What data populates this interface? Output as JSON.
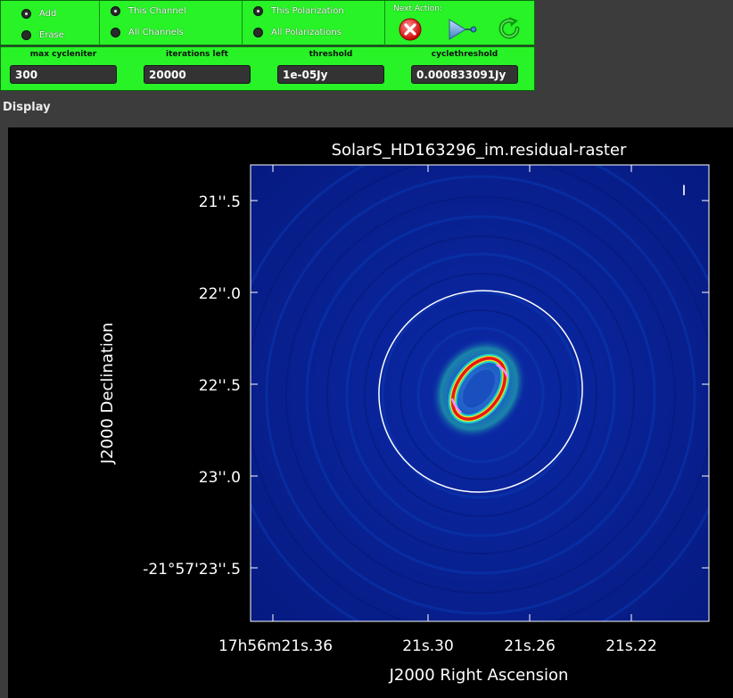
{
  "controls": {
    "add_label": "Add",
    "erase_label": "Erase",
    "this_channel_label": "This Channel",
    "all_channels_label": "All Channels",
    "this_pol_label": "This Polarization",
    "all_pols_label": "All Polarizations",
    "next_action_label": "Next Action:"
  },
  "fields": {
    "max_cycleniter": {
      "label": "max cycleniter",
      "value": "300"
    },
    "iterations_left": {
      "label": "iterations left",
      "value": "20000"
    },
    "threshold": {
      "label": "threshold",
      "value": "1e-05Jy"
    },
    "cyclethreshold": {
      "label": "cyclethreshold",
      "value": "0.000833091Jy"
    }
  },
  "display": {
    "section_label": "Display",
    "plot_title": "SolarS_HD163296_im.residual-raster",
    "ylabel": "J2000 Declination",
    "xlabel": "J2000 Right Ascension",
    "stokes_label": "I",
    "y_ticks": [
      "21''.5",
      "22''.0",
      "22''.5",
      "23''.0",
      "-21°57'23''.5"
    ],
    "x_ticks": [
      "17h56m21s.36",
      "21s.30",
      "21s.26",
      "21s.22"
    ],
    "colors": {
      "background": "#000000",
      "panel_green": "#27f327",
      "image_base": "#0a1f9c"
    }
  }
}
